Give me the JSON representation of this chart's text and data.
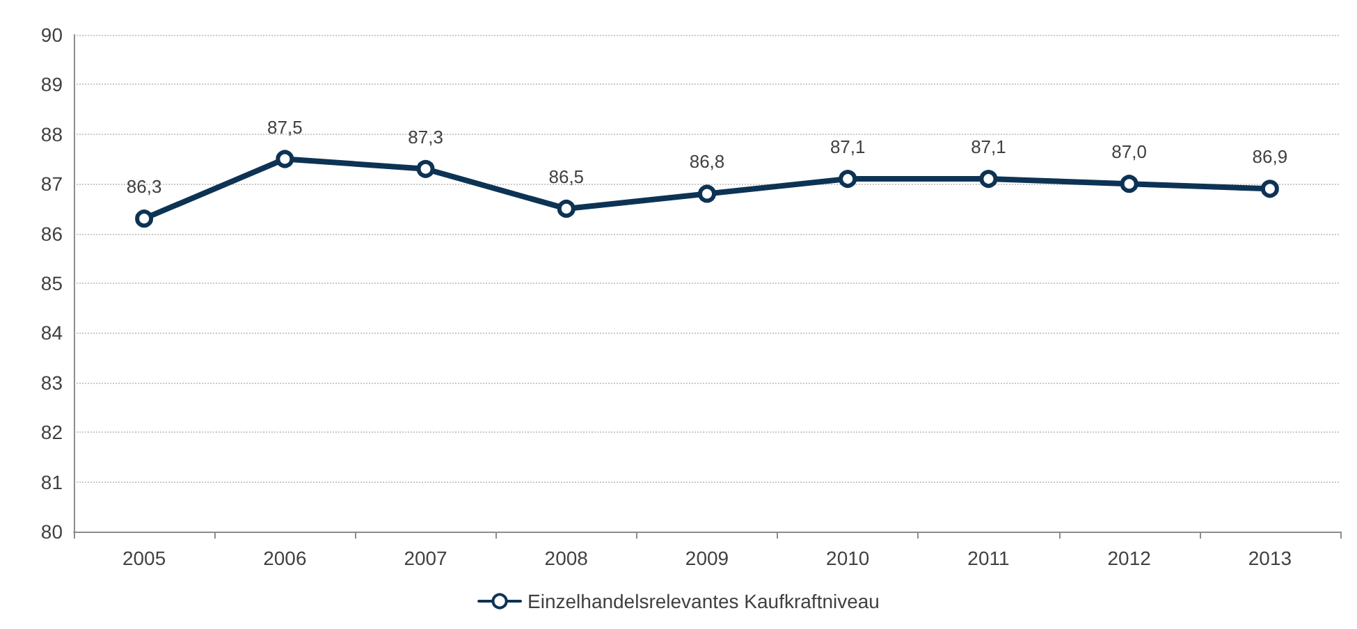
{
  "chart_data": {
    "type": "line",
    "categories": [
      "2005",
      "2006",
      "2007",
      "2008",
      "2009",
      "2010",
      "2011",
      "2012",
      "2013"
    ],
    "series": [
      {
        "name": "Einzelhandelsrelevantes Kaufkraftniveau",
        "color": "#0d3354",
        "values": [
          86.3,
          87.5,
          87.3,
          86.5,
          86.8,
          87.1,
          87.1,
          87.0,
          86.9
        ],
        "value_labels": [
          "86,3",
          "87,5",
          "87,3",
          "86,5",
          "86,8",
          "87,1",
          "87,1",
          "87,0",
          "86,9"
        ]
      }
    ],
    "ylim": [
      80,
      90
    ],
    "yticks": [
      80,
      81,
      82,
      83,
      84,
      85,
      86,
      87,
      88,
      89,
      90
    ],
    "grid": "y",
    "legend": "bottom",
    "marker": "circle",
    "line_style": "solid"
  }
}
